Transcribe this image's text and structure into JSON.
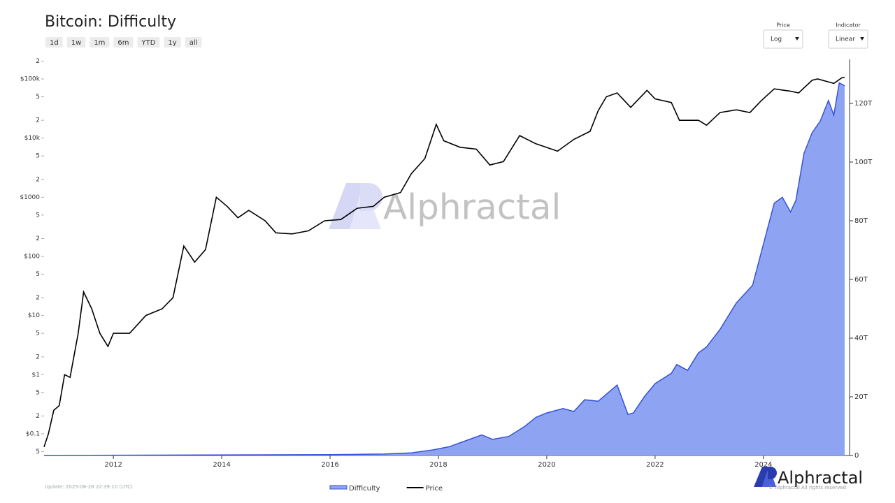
{
  "chart_data": {
    "type": "line",
    "title": "Bitcoin: Difficulty",
    "xlim": [
      2010.72,
      2025.59
    ],
    "xticks": [
      2012,
      2014,
      2016,
      2018,
      2020,
      2022,
      2024
    ],
    "ylog": true,
    "ylim": [
      0.043,
      214000
    ],
    "yticks": [
      {
        "value": 0.05,
        "label": "5"
      },
      {
        "value": 0.1,
        "label": "$0.1"
      },
      {
        "value": 0.2,
        "label": "2"
      },
      {
        "value": 0.5,
        "label": "5"
      },
      {
        "value": 1,
        "label": "$1"
      },
      2,
      5,
      {
        "value": 10,
        "label": "$10"
      },
      {
        "value": 20,
        "label": "2"
      },
      {
        "value": 50,
        "label": "5"
      },
      {
        "value": 100,
        "label": "$100"
      },
      {
        "value": 200,
        "label": "2"
      },
      {
        "value": 500,
        "label": "5"
      },
      {
        "value": 1000,
        "label": "$1000"
      },
      {
        "value": 2000,
        "label": "2"
      },
      {
        "value": 5000,
        "label": "5"
      },
      {
        "value": 10000,
        "label": "$10k"
      },
      {
        "value": 20000,
        "label": "2"
      },
      {
        "value": 50000,
        "label": "5"
      },
      {
        "value": 100000,
        "label": "$100k"
      },
      {
        "value": 200000,
        "label": "2"
      }
    ],
    "y2lim": [
      0,
      135
    ],
    "y2ticks": [
      0,
      {
        "value": 20,
        "label": "20T"
      },
      {
        "value": 40,
        "label": "40T"
      },
      {
        "value": 60,
        "label": "60T"
      },
      {
        "value": 80,
        "label": "80T"
      },
      {
        "value": 100,
        "label": "100T"
      },
      {
        "value": 120,
        "label": "120T"
      }
    ],
    "legend": "bottom",
    "series": [
      {
        "name": "Difficulty",
        "axis": "y2",
        "style": "area",
        "color": "#3553d6",
        "fill": "#8ea4f2",
        "x": [
          2010.72,
          2016.0,
          2017.0,
          2017.5,
          2017.9,
          2018.2,
          2018.5,
          2018.8,
          2019.0,
          2019.3,
          2019.6,
          2019.8,
          2020.0,
          2020.3,
          2020.5,
          2020.7,
          2020.95,
          2021.3,
          2021.5,
          2021.6,
          2021.8,
          2022.0,
          2022.3,
          2022.4,
          2022.6,
          2022.8,
          2022.95,
          2023.2,
          2023.5,
          2023.8,
          2024.0,
          2024.2,
          2024.35,
          2024.5,
          2024.6,
          2024.75,
          2024.9,
          2025.05,
          2025.2,
          2025.3,
          2025.4,
          2025.5
        ],
        "values": [
          0,
          0.3,
          0.5,
          0.9,
          1.9,
          3,
          5,
          7,
          5.5,
          6.5,
          10,
          13,
          14.5,
          16,
          15,
          19,
          18.5,
          24,
          14,
          14.5,
          20,
          24.5,
          28,
          31,
          29,
          35,
          37,
          43,
          52,
          58,
          72,
          86,
          88,
          83,
          87,
          103,
          110,
          114,
          121,
          116,
          127,
          126
        ]
      },
      {
        "name": "Price",
        "axis": "y",
        "style": "line",
        "color": "#000000",
        "x": [
          2010.72,
          2010.8,
          2010.9,
          2011.0,
          2011.1,
          2011.2,
          2011.35,
          2011.45,
          2011.6,
          2011.75,
          2011.9,
          2012.0,
          2012.3,
          2012.6,
          2012.9,
          2013.1,
          2013.3,
          2013.5,
          2013.7,
          2013.9,
          2014.1,
          2014.3,
          2014.5,
          2014.8,
          2015.0,
          2015.3,
          2015.6,
          2015.9,
          2016.2,
          2016.5,
          2016.8,
          2017.0,
          2017.3,
          2017.5,
          2017.75,
          2017.96,
          2018.1,
          2018.4,
          2018.7,
          2018.95,
          2019.2,
          2019.5,
          2019.8,
          2019.95,
          2020.2,
          2020.5,
          2020.8,
          2020.95,
          2021.1,
          2021.3,
          2021.55,
          2021.85,
          2022.0,
          2022.3,
          2022.45,
          2022.8,
          2022.95,
          2023.2,
          2023.5,
          2023.75,
          2023.95,
          2024.2,
          2024.5,
          2024.65,
          2024.9,
          2025.0,
          2025.3,
          2025.45,
          2025.5
        ],
        "values": [
          0.06,
          0.1,
          0.25,
          0.3,
          1.0,
          0.9,
          5,
          25,
          13,
          5,
          3,
          5,
          5,
          10,
          13,
          20,
          150,
          80,
          130,
          1000,
          700,
          450,
          600,
          400,
          250,
          240,
          270,
          400,
          420,
          650,
          700,
          1000,
          1200,
          2500,
          4500,
          17000,
          9000,
          7000,
          6500,
          3500,
          4000,
          11000,
          8000,
          7200,
          6000,
          9500,
          13000,
          29000,
          50000,
          58000,
          33000,
          64000,
          46000,
          40000,
          20000,
          20000,
          16500,
          27000,
          30000,
          27000,
          42000,
          68000,
          62000,
          58000,
          95000,
          100000,
          84000,
          105000,
          107000
        ]
      }
    ],
    "watermark": "Alphractal"
  },
  "range_buttons": [
    "1d",
    "1w",
    "1m",
    "6m",
    "YTD",
    "1y",
    "all"
  ],
  "controls": [
    {
      "label": "Price",
      "value": "Log"
    },
    {
      "label": "Indicator",
      "value": "Linear"
    }
  ],
  "update_text": "Update: 2025-06-28 22:39:10 (UTC)",
  "brand": {
    "name": "Alphractal",
    "copyright": "© Alphractal All rights reserved"
  }
}
